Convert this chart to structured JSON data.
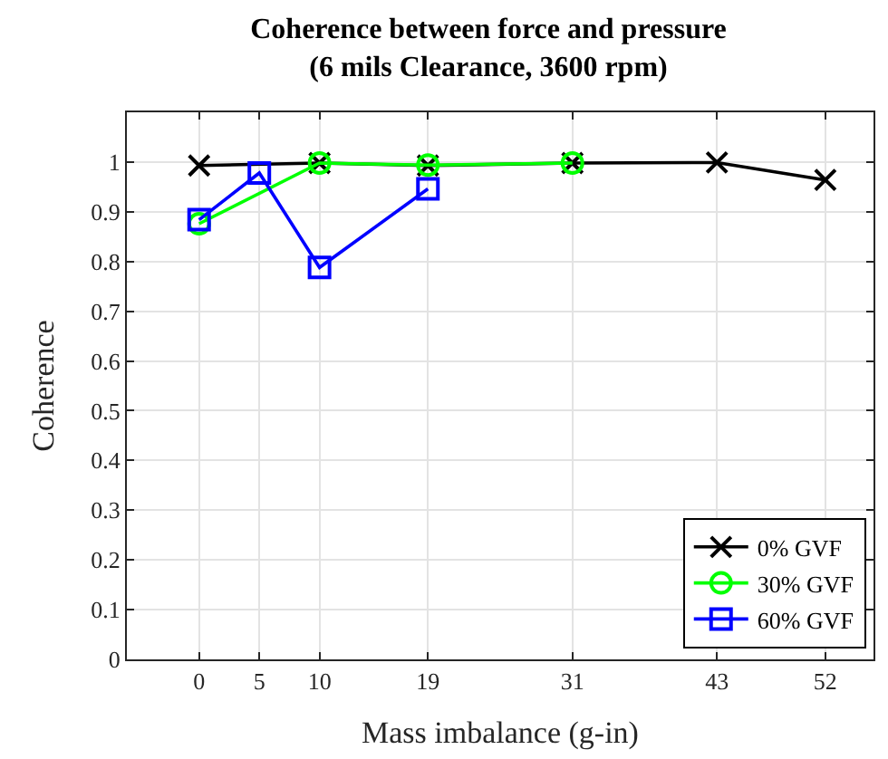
{
  "chart_data": {
    "type": "line",
    "title": "Coherence between force and pressure\n(6 mils Clearance, 3600 rpm)",
    "xlabel": "Mass imbalance (g-in)",
    "ylabel": "Coherence",
    "series": [
      {
        "name": "0% GVF",
        "color": "#000000",
        "marker": "cross",
        "x": [
          0,
          10,
          19,
          31,
          43,
          52
        ],
        "values": [
          0.993,
          0.998,
          0.993,
          0.998,
          0.999,
          0.964
        ]
      },
      {
        "name": "30% GVF",
        "color": "#00ff00",
        "marker": "circle",
        "x": [
          0,
          10,
          19,
          31
        ],
        "values": [
          0.876,
          0.998,
          0.994,
          0.998
        ]
      },
      {
        "name": "60% GVF",
        "color": "#0000ff",
        "marker": "square",
        "x": [
          0,
          5,
          10,
          19
        ],
        "values": [
          0.884,
          0.978,
          0.788,
          0.946
        ]
      }
    ],
    "xlim": [
      -6,
      56
    ],
    "xticks": [
      0,
      5,
      10,
      19,
      31,
      43,
      52
    ],
    "ylim": [
      0,
      1.1
    ],
    "yticks": [
      0,
      0.1,
      0.2,
      0.3,
      0.4,
      0.5,
      0.6,
      0.7,
      0.8,
      0.9,
      1
    ],
    "grid": true,
    "legend": "bottom right",
    "line_style": "solid"
  }
}
